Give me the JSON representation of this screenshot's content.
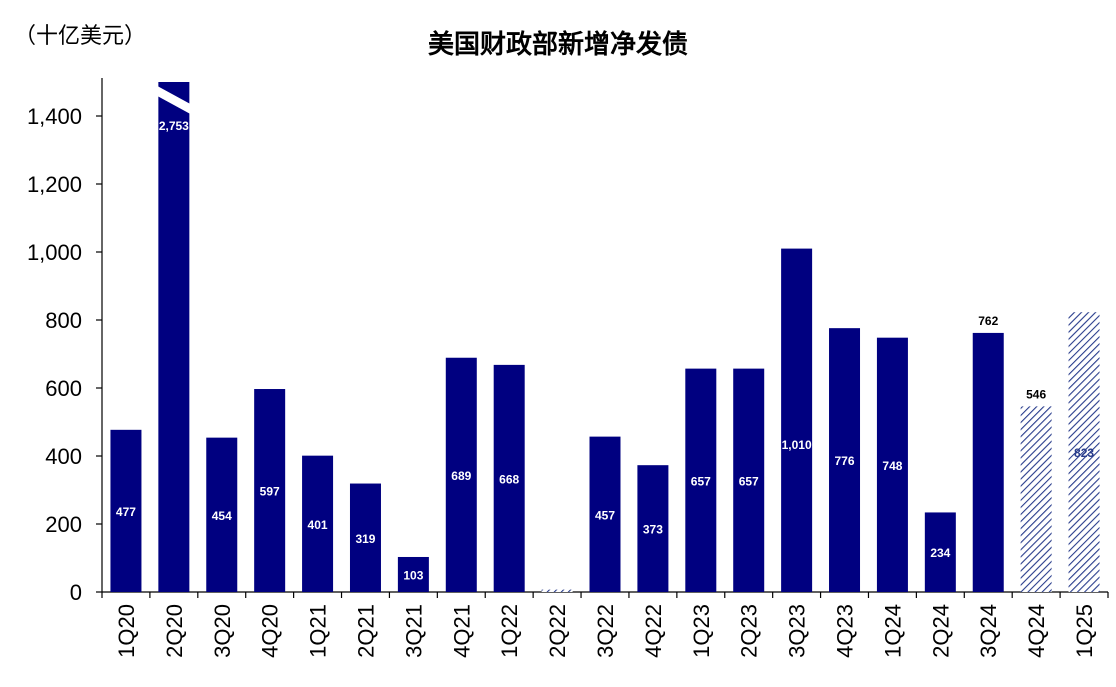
{
  "chart_data": {
    "type": "bar",
    "title": "美国财政部新增净发债",
    "unit_label": "（十亿美元）",
    "xlabel": "",
    "ylabel": "",
    "ylim": [
      0,
      1500
    ],
    "y_ticks": [
      0,
      200,
      400,
      600,
      800,
      1000,
      1200,
      1400
    ],
    "y_tick_labels": [
      "0",
      "200",
      "400",
      "600",
      "800",
      "1,000",
      "1,200",
      "1,400"
    ],
    "categories": [
      "1Q20",
      "2Q20",
      "3Q20",
      "4Q20",
      "1Q21",
      "2Q21",
      "3Q21",
      "4Q21",
      "1Q22",
      "2Q22",
      "3Q22",
      "4Q22",
      "1Q23",
      "2Q23",
      "3Q23",
      "4Q23",
      "1Q24",
      "2Q24",
      "3Q24",
      "4Q24",
      "1Q25"
    ],
    "values": [
      477,
      2753,
      454,
      597,
      401,
      319,
      103,
      689,
      668,
      7,
      457,
      373,
      657,
      657,
      1010,
      776,
      748,
      234,
      762,
      546,
      823
    ],
    "data_labels": [
      "477",
      "2,753",
      "454",
      "597",
      "401",
      "319",
      "103",
      "689",
      "668",
      "",
      "457",
      "373",
      "657",
      "657",
      "1,010",
      "776",
      "748",
      "234",
      "762",
      "546",
      "823"
    ],
    "label_position": [
      "inside",
      "inside",
      "inside",
      "inside",
      "inside",
      "inside",
      "inside",
      "inside",
      "inside",
      "none",
      "inside",
      "inside",
      "inside",
      "inside",
      "inside",
      "inside",
      "inside",
      "inside",
      "above",
      "above",
      "inside"
    ],
    "projected": [
      false,
      false,
      false,
      false,
      false,
      false,
      false,
      false,
      false,
      true,
      false,
      false,
      false,
      false,
      false,
      false,
      false,
      false,
      false,
      true,
      true
    ],
    "truncated": [
      false,
      true,
      false,
      false,
      false,
      false,
      false,
      false,
      false,
      false,
      false,
      false,
      false,
      false,
      false,
      false,
      false,
      false,
      false,
      false,
      false
    ],
    "grid": false,
    "colors": {
      "bar": "#000080",
      "projected": "#283c8c",
      "axis": "#000000",
      "label_inside": "#ffffff",
      "label_outside": "#000000"
    }
  }
}
